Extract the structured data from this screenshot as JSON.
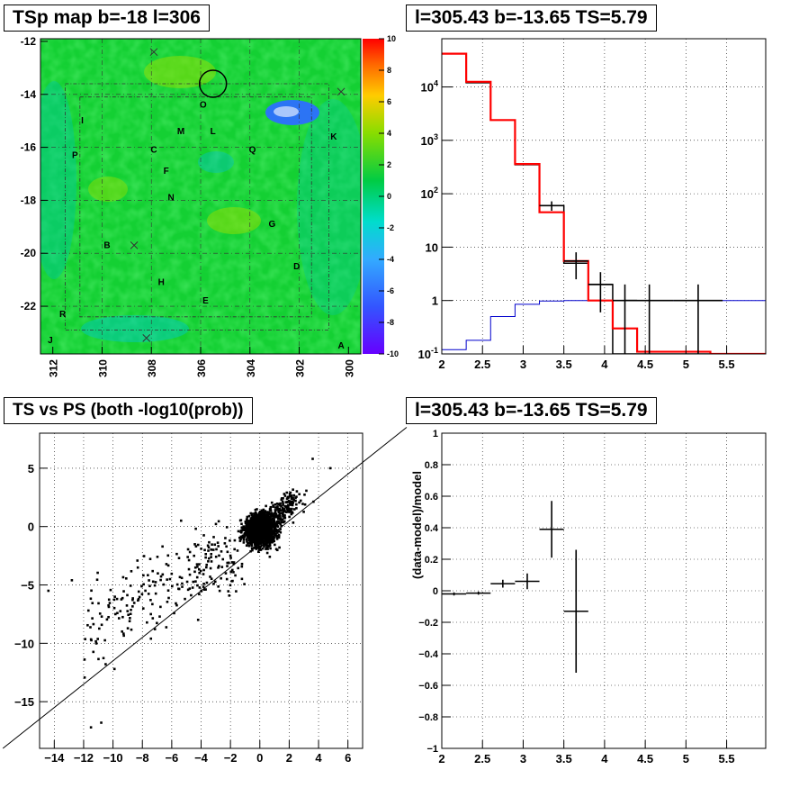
{
  "panels": {
    "map": {
      "title": "TSp map b=-18 l=306",
      "x_ticks": [
        "312",
        "310",
        "308",
        "306",
        "304",
        "302",
        "300"
      ],
      "y_ticks": [
        "-12",
        "-14",
        "-16",
        "-18",
        "-20",
        "-22"
      ],
      "colorbar_ticks": [
        "10",
        "8",
        "6",
        "4",
        "2",
        "0",
        "-2",
        "-4",
        "-6",
        "-8",
        "-10"
      ],
      "source_labels": [
        "I",
        "O",
        "M",
        "L",
        "K",
        "P",
        "C",
        "Q",
        "F",
        "N",
        "G",
        "B",
        "D",
        "H",
        "E",
        "R",
        "J",
        "A"
      ]
    },
    "spectrum": {
      "title": "l=305.43 b=-13.65 TS=5.79",
      "x_ticks": [
        "2",
        "2.5",
        "3",
        "3.5",
        "4",
        "4.5",
        "5",
        "5.5"
      ],
      "y_ticks": [
        "10^{-1}",
        "1",
        "10",
        "10^{2}",
        "10^{3}",
        "10^{4}"
      ]
    },
    "scatter": {
      "title": "TS vs PS (both -log10(prob))",
      "x_ticks": [
        "−14",
        "−12",
        "−10",
        "−8",
        "−6",
        "−4",
        "−2",
        "0",
        "2",
        "4",
        "6"
      ],
      "y_ticks": [
        "5",
        "0",
        "−5",
        "−10",
        "−15"
      ]
    },
    "residual": {
      "title": "l=305.43 b=-13.65 TS=5.79",
      "ylabel": "(data-model)/model",
      "x_ticks": [
        "2",
        "2.5",
        "3",
        "3.5",
        "4",
        "4.5",
        "5",
        "5.5"
      ],
      "y_ticks": [
        "1",
        "0.8",
        "0.6",
        "0.4",
        "0.2",
        "0",
        "−0.2",
        "−0.4",
        "−0.6",
        "−0.8",
        "−1"
      ]
    }
  },
  "colors": {
    "red": "#ff0000",
    "blue": "#0000cc",
    "grid": "#000000"
  },
  "chart_data": [
    {
      "type": "heatmap",
      "title": "TSp map b=-18 l=306",
      "xlim": [
        312.5,
        299.5
      ],
      "ylim": [
        -23.8,
        -11.9
      ],
      "zlim": [
        -10,
        10
      ],
      "circle": {
        "l": 305.5,
        "b": -13.6
      },
      "crosses": [
        [
          307.9,
          -12.4
        ],
        [
          300.3,
          -13.9
        ],
        [
          308.7,
          -19.7
        ],
        [
          308.2,
          -23.2
        ]
      ],
      "sources": [
        {
          "name": "I",
          "l": 310.8,
          "b": -15.1
        },
        {
          "name": "O",
          "l": 305.9,
          "b": -14.5
        },
        {
          "name": "M",
          "l": 306.8,
          "b": -15.5
        },
        {
          "name": "L",
          "l": 305.5,
          "b": -15.5
        },
        {
          "name": "K",
          "l": 300.6,
          "b": -15.7
        },
        {
          "name": "P",
          "l": 311.1,
          "b": -16.4
        },
        {
          "name": "C",
          "l": 307.9,
          "b": -16.2
        },
        {
          "name": "Q",
          "l": 303.9,
          "b": -16.2
        },
        {
          "name": "F",
          "l": 307.4,
          "b": -17.0
        },
        {
          "name": "N",
          "l": 307.2,
          "b": -18.0
        },
        {
          "name": "G",
          "l": 303.1,
          "b": -19.0
        },
        {
          "name": "B",
          "l": 309.8,
          "b": -19.8
        },
        {
          "name": "D",
          "l": 302.1,
          "b": -20.6
        },
        {
          "name": "H",
          "l": 307.6,
          "b": -21.2
        },
        {
          "name": "E",
          "l": 305.8,
          "b": -21.9
        },
        {
          "name": "R",
          "l": 311.6,
          "b": -22.4
        },
        {
          "name": "J",
          "l": 312.1,
          "b": -23.4
        },
        {
          "name": "A",
          "l": 300.3,
          "b": -23.6
        }
      ]
    },
    {
      "type": "line",
      "title": "l=305.43 b=-13.65 TS=5.79",
      "log_y": true,
      "xlim": [
        2.0,
        5.98
      ],
      "ylim": [
        0.1,
        80000
      ],
      "bin_edges": [
        2.0,
        2.3,
        2.6,
        2.9,
        3.2,
        3.5,
        3.8,
        4.1,
        4.4,
        4.7,
        5.0,
        5.3,
        5.98
      ],
      "series": [
        {
          "color": "red",
          "values": [
            42000,
            12500,
            2400,
            360,
            45,
            5.5,
            1.0,
            0.3,
            0.11,
            0.11,
            0.11,
            0.1
          ]
        },
        {
          "color": "black",
          "values": [
            42000,
            12000,
            2400,
            350,
            60,
            5.0,
            2.0,
            0.1,
            0.1,
            0.1,
            0.1,
            0.1
          ]
        },
        {
          "color": "blue",
          "values": [
            0.12,
            0.18,
            0.5,
            0.85,
            0.98,
            1.0,
            1.0,
            1.0,
            1.0,
            1.0,
            1.0,
            1.0
          ]
        }
      ],
      "error_points": [
        {
          "x": 3.35,
          "xerr": 0.15,
          "y": 60,
          "ylo": 48,
          "yhi": 72
        },
        {
          "x": 3.65,
          "xerr": 0.15,
          "y": 5.5,
          "ylo": 2.5,
          "yhi": 8
        },
        {
          "x": 3.95,
          "xerr": 0.15,
          "y": 2,
          "ylo": 0.6,
          "yhi": 3.4
        },
        {
          "x": 4.25,
          "xerr": 0.15,
          "y": 1,
          "ylo": 0.1,
          "yhi": 2
        },
        {
          "x": 4.55,
          "xerr": 0.3,
          "y": 1,
          "ylo": 0.1,
          "yhi": 2
        },
        {
          "x": 5.15,
          "xerr": 0.3,
          "y": 1,
          "ylo": 0.1,
          "yhi": 2
        }
      ]
    },
    {
      "type": "scatter",
      "title": "TS vs PS (both -log10(prob))",
      "xlim": [
        -15,
        7
      ],
      "ylim": [
        -19,
        8
      ],
      "line": [
        [
          -17.5,
          -19
        ],
        [
          10,
          8.5
        ]
      ]
    },
    {
      "type": "scatter",
      "title": "l=305.43 b=-13.65 TS=5.79",
      "ylabel": "(data-model)/model",
      "xlim": [
        2.0,
        5.98
      ],
      "ylim": [
        -1,
        1
      ],
      "points": [
        {
          "x": 2.15,
          "xerr": 0.15,
          "y": -0.02,
          "yerr": 0.01
        },
        {
          "x": 2.45,
          "xerr": 0.15,
          "y": -0.015,
          "yerr": 0.01
        },
        {
          "x": 2.75,
          "xerr": 0.15,
          "y": 0.045,
          "yerr": 0.025
        },
        {
          "x": 3.05,
          "xerr": 0.15,
          "y": 0.06,
          "yerr": 0.05
        },
        {
          "x": 3.35,
          "xerr": 0.15,
          "y": 0.39,
          "yerr": 0.18
        },
        {
          "x": 3.65,
          "xerr": 0.15,
          "y": -0.13,
          "yerr": 0.39
        }
      ]
    }
  ]
}
